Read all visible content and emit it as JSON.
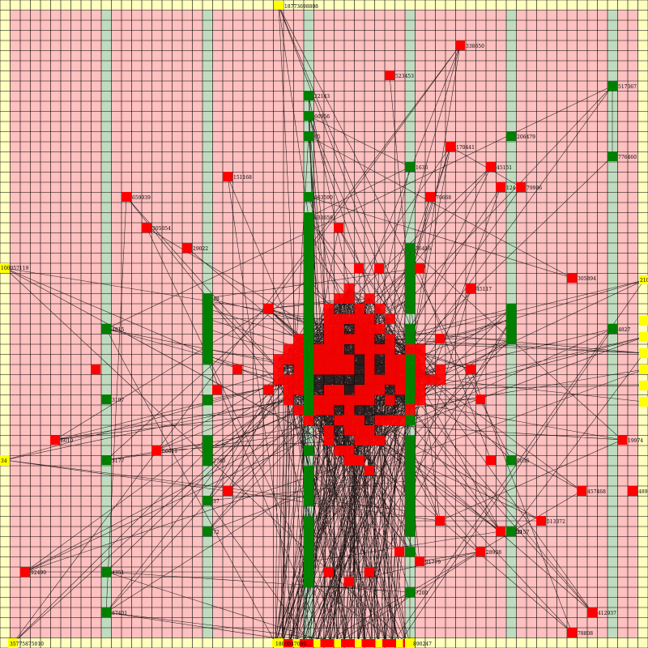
{
  "colors": {
    "pink": "#ffc0c0",
    "border_yellow": "#ffffc0",
    "column_green": "#c0dcc0",
    "grid_line": "#000000",
    "edge": "#000000",
    "node_red": "#ff0000",
    "node_green": "#008000",
    "node_yellow": "#ffff00",
    "label": "#000000"
  },
  "labels": {
    "n_top": "18773698808",
    "n_mid_left": "100057119",
    "n_right_edge": "2100",
    "n_left_mid": "34",
    "n_bottom_left": "35775875010",
    "n_bottom_center": "1800047080…",
    "n_bottom_center_b": "890247",
    "r_338650": "338650",
    "r_523453": "523453",
    "r_151168": "151168",
    "r_59939": "659939",
    "r_305054": "305054",
    "r_29022": "29022",
    "r_170441": "170441",
    "r_45151": "45151",
    "r_70668": "70668",
    "r_12456": "12456",
    "r_79986": "79986",
    "r_305894": "305894",
    "r_45117": "45117",
    "r_19974": "19974",
    "r_457468": "457468",
    "r_4897": "4897",
    "r_513372": "513372",
    "r_28908": "28908",
    "r_412937": "412937",
    "r_78808": "78808",
    "r_90000": "90000",
    "r_91779": "91779",
    "r_92490": "92490",
    "r_6010": "6010",
    "r_56011": "56011",
    "g_517367": "517367",
    "g_776460": "776460",
    "g_206479": "206479",
    "g_22143": "22143",
    "g_60956": "60956",
    "g_05": "05",
    "g_1636": "1636",
    "g_663590": "663590",
    "g_633659": "633659",
    "g_76416": "76416",
    "g_48": "48",
    "g_4815": "4815",
    "g_3197": "3197",
    "g_3177": "3177",
    "g_4351": "4351",
    "g_87401": "87401",
    "g_2780": "2780",
    "g_37": "37",
    "g_72": "72",
    "g_0036": "0036",
    "g_2157": "2157",
    "g_4827": "4827",
    "g_7200": "7200"
  }
}
